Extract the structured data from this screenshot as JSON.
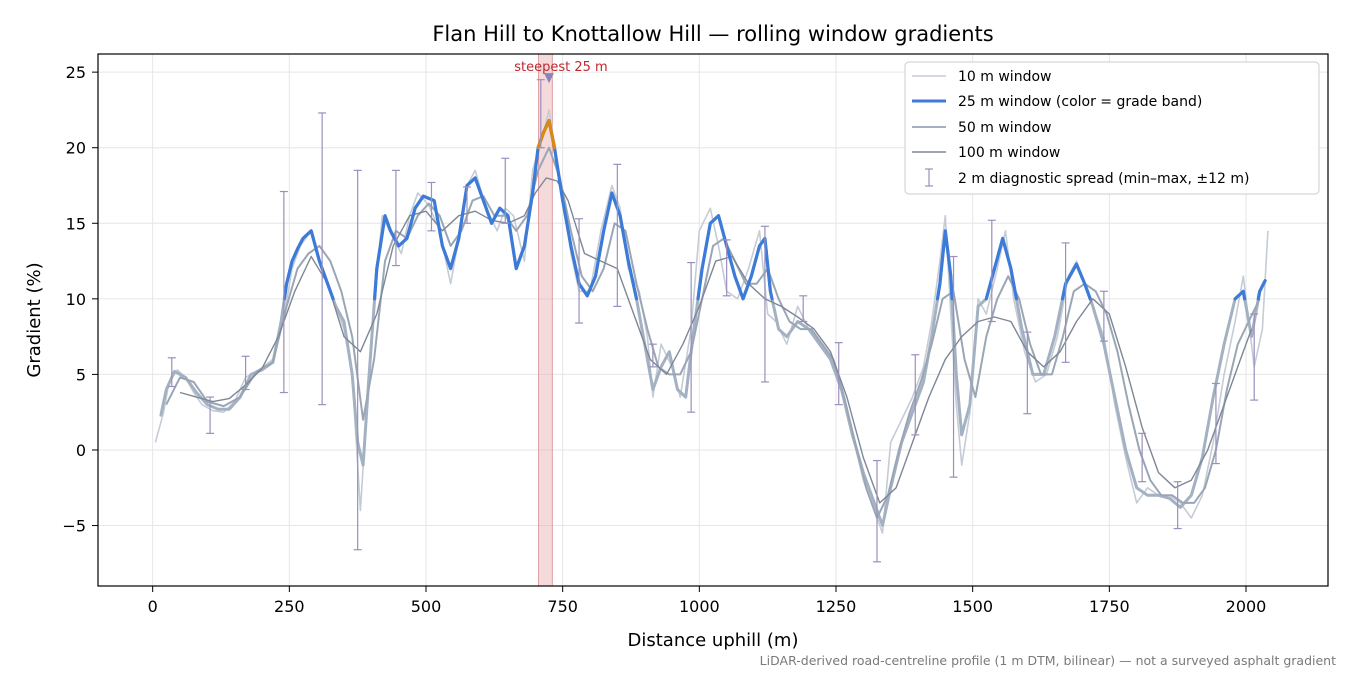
{
  "chart_data": {
    "type": "line",
    "title": "Flan Hill to Knottallow Hill — rolling window gradients",
    "xlabel": "Distance uphill (m)",
    "ylabel": "Gradient (%)",
    "xlim": [
      -100,
      2150
    ],
    "ylim": [
      -9,
      26.2
    ],
    "xticks": [
      0,
      250,
      500,
      750,
      1000,
      1250,
      1500,
      1750,
      2000
    ],
    "yticks": [
      -5,
      0,
      5,
      10,
      15,
      20,
      25
    ],
    "ytick_labels": [
      "−5",
      "0",
      "5",
      "10",
      "15",
      "20",
      "25"
    ],
    "grid": true,
    "legend_position": "upper right",
    "footnote": "LiDAR-derived road-centreline profile (1 m DTM, bilinear) — not a surveyed asphalt gradient",
    "colors": {
      "w10": "#c5ccd6",
      "w25_base": "#a3b1c2",
      "w25_band_blue": "#3d7bd9",
      "w25_band_orange": "#d98a0f",
      "w50": "#9aa6b6",
      "w100": "#7e8796",
      "errorbar": "#9a90bc",
      "highlight": "#e8aeb1",
      "highlight_edge": "#d98a8f",
      "annotation": "#c0272d",
      "marker": "#8a84b8"
    },
    "highlight": {
      "x_start": 706,
      "x_end": 731,
      "label": "steepest 25 m",
      "marker_x": 725,
      "marker_y": 24.6
    },
    "series": [
      {
        "name": "10 m window",
        "x": [
          5,
          20,
          30,
          45,
          60,
          75,
          90,
          110,
          130,
          150,
          170,
          195,
          220,
          240,
          255,
          270,
          290,
          305,
          320,
          335,
          350,
          365,
          380,
          400,
          420,
          440,
          455,
          470,
          485,
          505,
          525,
          545,
          560,
          575,
          590,
          610,
          630,
          645,
          660,
          680,
          695,
          715,
          725,
          735,
          750,
          765,
          780,
          800,
          820,
          840,
          855,
          870,
          890,
          905,
          915,
          930,
          950,
          965,
          985,
          1000,
          1020,
          1035,
          1050,
          1070,
          1090,
          1110,
          1125,
          1140,
          1160,
          1180,
          1200,
          1220,
          1240,
          1260,
          1280,
          1300,
          1320,
          1335,
          1350,
          1370,
          1390,
          1410,
          1425,
          1440,
          1450,
          1460,
          1470,
          1480,
          1495,
          1510,
          1525,
          1545,
          1560,
          1575,
          1595,
          1615,
          1635,
          1655,
          1675,
          1690,
          1705,
          1720,
          1740,
          1760,
          1780,
          1800,
          1820,
          1840,
          1860,
          1880,
          1900,
          1920,
          1940,
          1960,
          1980,
          1995,
          2015,
          2030,
          2040
        ],
        "values": [
          0.5,
          2.5,
          4.5,
          5.3,
          4.8,
          3.8,
          3.0,
          2.6,
          2.5,
          3.2,
          4.8,
          5.3,
          6.0,
          8.8,
          12.0,
          13.5,
          14.5,
          12.5,
          11.0,
          9.5,
          8.0,
          5.0,
          -4.0,
          7.5,
          15.5,
          14.0,
          13.0,
          15.5,
          17.0,
          16.2,
          14.5,
          11.0,
          14.0,
          17.5,
          18.5,
          16.0,
          14.5,
          16.0,
          15.5,
          12.5,
          18.5,
          21.0,
          22.5,
          20.0,
          17.0,
          13.0,
          10.5,
          10.5,
          14.5,
          17.5,
          16.0,
          12.0,
          10.5,
          7.5,
          3.5,
          7.0,
          5.5,
          3.5,
          8.0,
          14.5,
          16.0,
          13.5,
          10.5,
          10.0,
          12.0,
          14.5,
          9.0,
          8.5,
          7.0,
          9.5,
          8.0,
          7.0,
          6.0,
          4.0,
          1.0,
          -2.0,
          -4.0,
          -5.5,
          0.5,
          2.0,
          3.5,
          5.5,
          8.5,
          12.5,
          15.5,
          9.0,
          3.0,
          -1.0,
          2.5,
          10.0,
          9.0,
          12.0,
          14.5,
          10.0,
          6.5,
          4.5,
          5.0,
          7.5,
          11.5,
          12.5,
          11.0,
          9.5,
          7.5,
          3.0,
          -0.5,
          -3.5,
          -2.5,
          -3.0,
          -3.0,
          -3.5,
          -4.5,
          -3.0,
          0.5,
          5.0,
          8.5,
          11.5,
          5.5,
          8.0,
          14.5
        ]
      },
      {
        "name": "25 m window (color = grade band)",
        "x": [
          15,
          25,
          40,
          60,
          80,
          100,
          120,
          140,
          160,
          180,
          200,
          220,
          235,
          245,
          255,
          265,
          275,
          290,
          305,
          320,
          335,
          350,
          365,
          375,
          385,
          395,
          410,
          425,
          435,
          450,
          465,
          480,
          495,
          515,
          530,
          545,
          560,
          575,
          590,
          605,
          620,
          635,
          650,
          665,
          680,
          695,
          705,
          715,
          725,
          735,
          750,
          765,
          780,
          795,
          810,
          825,
          840,
          855,
          870,
          885,
          900,
          915,
          930,
          945,
          960,
          975,
          990,
          1005,
          1020,
          1035,
          1050,
          1065,
          1080,
          1095,
          1110,
          1120,
          1130,
          1145,
          1160,
          1180,
          1200,
          1220,
          1240,
          1260,
          1280,
          1300,
          1320,
          1335,
          1350,
          1370,
          1390,
          1410,
          1425,
          1440,
          1450,
          1460,
          1470,
          1480,
          1495,
          1510,
          1525,
          1540,
          1555,
          1570,
          1590,
          1610,
          1630,
          1650,
          1670,
          1690,
          1705,
          1720,
          1740,
          1760,
          1780,
          1800,
          1820,
          1840,
          1860,
          1880,
          1900,
          1920,
          1940,
          1960,
          1980,
          1995,
          2010,
          2025,
          2035
        ],
        "values": [
          2.3,
          4.0,
          5.2,
          4.8,
          3.8,
          3.0,
          2.7,
          2.7,
          3.5,
          5.0,
          5.3,
          5.8,
          8.5,
          11.0,
          12.5,
          13.3,
          14.0,
          14.5,
          12.5,
          11.0,
          9.5,
          8.5,
          5.0,
          0.5,
          -1.0,
          4.5,
          12.0,
          15.5,
          14.5,
          13.5,
          14.0,
          16.0,
          16.8,
          16.5,
          13.5,
          12.0,
          14.0,
          17.5,
          18.0,
          16.5,
          15.0,
          16.0,
          15.5,
          12.0,
          13.5,
          17.0,
          20.0,
          21.0,
          21.8,
          20.0,
          16.5,
          13.5,
          11.0,
          10.2,
          11.5,
          14.5,
          17.0,
          15.5,
          12.5,
          10.0,
          7.0,
          4.0,
          5.5,
          6.5,
          4.0,
          3.5,
          8.0,
          12.0,
          15.0,
          15.5,
          13.5,
          11.5,
          10.0,
          11.5,
          13.5,
          14.0,
          10.5,
          8.0,
          7.5,
          8.5,
          8.0,
          7.0,
          6.0,
          4.0,
          1.0,
          -1.5,
          -3.5,
          -5.0,
          -2.5,
          0.5,
          2.5,
          4.5,
          7.5,
          11.0,
          14.5,
          11.5,
          5.0,
          1.0,
          3.0,
          9.5,
          10.0,
          12.0,
          14.0,
          12.0,
          8.0,
          5.0,
          5.0,
          7.5,
          11.0,
          12.3,
          11.0,
          9.5,
          7.0,
          3.5,
          0.0,
          -2.5,
          -3.0,
          -3.0,
          -3.2,
          -3.8,
          -3.0,
          -0.5,
          3.5,
          7.0,
          10.0,
          10.5,
          7.5,
          10.5,
          11.2
        ]
      },
      {
        "name": "50 m window",
        "x": [
          25,
          50,
          75,
          100,
          130,
          160,
          190,
          220,
          245,
          265,
          285,
          305,
          325,
          345,
          365,
          385,
          405,
          425,
          445,
          465,
          485,
          505,
          525,
          545,
          565,
          585,
          605,
          625,
          645,
          665,
          685,
          705,
          725,
          745,
          765,
          785,
          805,
          825,
          845,
          865,
          885,
          905,
          925,
          945,
          965,
          985,
          1005,
          1025,
          1045,
          1065,
          1085,
          1105,
          1125,
          1145,
          1165,
          1185,
          1205,
          1225,
          1245,
          1265,
          1285,
          1305,
          1325,
          1345,
          1365,
          1385,
          1405,
          1425,
          1445,
          1465,
          1485,
          1505,
          1525,
          1545,
          1565,
          1585,
          1605,
          1625,
          1645,
          1665,
          1685,
          1705,
          1725,
          1745,
          1765,
          1785,
          1805,
          1825,
          1845,
          1865,
          1885,
          1905,
          1925,
          1945,
          1965,
          1985,
          2005,
          2025
        ],
        "values": [
          3.0,
          4.8,
          4.5,
          3.2,
          2.9,
          3.5,
          5.2,
          5.8,
          9.5,
          12.0,
          13.0,
          13.5,
          12.5,
          10.5,
          7.5,
          2.0,
          6.0,
          12.5,
          14.5,
          14.0,
          15.5,
          16.3,
          15.5,
          13.5,
          14.5,
          16.5,
          16.8,
          15.5,
          15.5,
          14.5,
          15.5,
          18.5,
          20.0,
          18.0,
          14.5,
          11.5,
          10.5,
          12.0,
          15.0,
          14.5,
          11.0,
          8.0,
          5.5,
          5.0,
          5.0,
          6.5,
          10.0,
          13.5,
          14.0,
          12.5,
          11.0,
          11.0,
          12.0,
          10.0,
          8.5,
          8.0,
          8.0,
          7.0,
          6.0,
          3.5,
          0.5,
          -2.5,
          -4.5,
          -3.0,
          0.0,
          2.5,
          4.5,
          7.0,
          10.0,
          10.5,
          6.0,
          3.5,
          7.5,
          10.0,
          11.5,
          10.0,
          7.0,
          5.0,
          5.0,
          7.5,
          10.5,
          11.0,
          10.5,
          9.0,
          6.5,
          3.0,
          0.0,
          -2.0,
          -3.0,
          -3.0,
          -3.5,
          -3.5,
          -2.5,
          0.0,
          4.0,
          7.0,
          8.5,
          10.0
        ]
      },
      {
        "name": "100 m window",
        "x": [
          50,
          80,
          110,
          140,
          170,
          200,
          230,
          260,
          290,
          320,
          350,
          380,
          410,
          440,
          470,
          500,
          530,
          560,
          590,
          620,
          650,
          680,
          700,
          720,
          740,
          760,
          790,
          820,
          850,
          880,
          910,
          940,
          970,
          1000,
          1030,
          1060,
          1090,
          1120,
          1150,
          1180,
          1210,
          1240,
          1270,
          1300,
          1330,
          1360,
          1390,
          1420,
          1450,
          1480,
          1510,
          1540,
          1570,
          1600,
          1630,
          1660,
          1690,
          1720,
          1750,
          1780,
          1810,
          1840,
          1870,
          1900,
          1930,
          1960,
          1990,
          2010
        ],
        "values": [
          3.8,
          3.5,
          3.2,
          3.4,
          4.3,
          5.4,
          7.5,
          10.5,
          12.8,
          11.0,
          7.5,
          6.5,
          9.0,
          13.5,
          15.5,
          15.8,
          14.5,
          15.5,
          15.8,
          15.2,
          15.0,
          15.5,
          17.0,
          18.0,
          17.8,
          16.5,
          13.0,
          12.5,
          12.0,
          9.0,
          6.0,
          5.0,
          7.0,
          9.5,
          12.5,
          12.8,
          11.0,
          10.0,
          9.5,
          8.8,
          8.0,
          6.5,
          3.5,
          -0.5,
          -3.5,
          -2.5,
          0.5,
          3.5,
          6.0,
          7.5,
          8.5,
          8.8,
          8.5,
          6.5,
          5.5,
          6.5,
          8.5,
          10.0,
          9.0,
          5.5,
          1.5,
          -1.5,
          -2.5,
          -2.0,
          0.0,
          3.0,
          6.0,
          8.0
        ]
      },
      {
        "name": "2 m diagnostic spread (min–max, ±12 m)",
        "x": [
          35,
          105,
          170,
          240,
          310,
          375,
          445,
          510,
          575,
          645,
          710,
          780,
          850,
          915,
          985,
          1050,
          1120,
          1190,
          1255,
          1325,
          1395,
          1465,
          1535,
          1600,
          1670,
          1740,
          1810,
          1875,
          1945,
          2015
        ],
        "low": [
          4.2,
          1.1,
          4.0,
          3.8,
          3.0,
          -6.6,
          12.2,
          14.5,
          15.0,
          15.0,
          20.0,
          8.4,
          9.5,
          5.5,
          2.5,
          10.2,
          4.5,
          8.5,
          3.0,
          -7.4,
          1.0,
          -1.8,
          8.5,
          2.4,
          5.8,
          7.2,
          -2.1,
          -5.2,
          -0.9,
          3.3
        ],
        "high": [
          6.1,
          3.5,
          6.2,
          17.1,
          22.3,
          18.5,
          18.5,
          17.7,
          17.4,
          19.3,
          24.5,
          15.3,
          18.9,
          7.0,
          12.4,
          13.9,
          14.8,
          10.2,
          7.1,
          -0.7,
          6.3,
          12.8,
          15.2,
          7.8,
          13.7,
          10.5,
          1.1,
          -2.1,
          4.4,
          9.0
        ]
      }
    ]
  }
}
